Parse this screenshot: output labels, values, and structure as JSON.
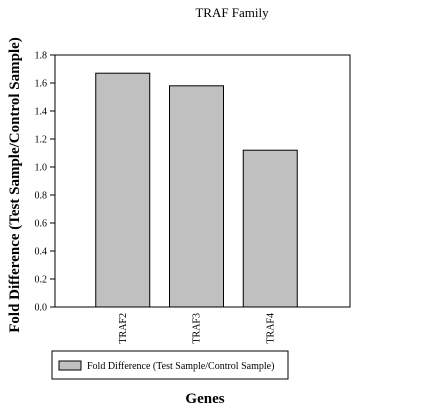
{
  "chart_data": {
    "type": "bar",
    "title": "TRAF Family",
    "xlabel": "Genes",
    "ylabel": "Fold Difference (Test Sample/Control Sample)",
    "categories": [
      "TRAF2",
      "TRAF3",
      "TRAF4"
    ],
    "series": [
      {
        "name": "Fold Difference (Test Sample/Control Sample)",
        "values": [
          1.67,
          1.58,
          1.12
        ]
      }
    ],
    "ylim": [
      0,
      1.8
    ],
    "yticks": [
      "0.0",
      "0.2",
      "0.4",
      "0.6",
      "0.8",
      "1.0",
      "1.2",
      "1.4",
      "1.6",
      "1.8"
    ],
    "bar_color": "#c0c0c0",
    "grid": false,
    "legend_position": "bottom-left"
  }
}
